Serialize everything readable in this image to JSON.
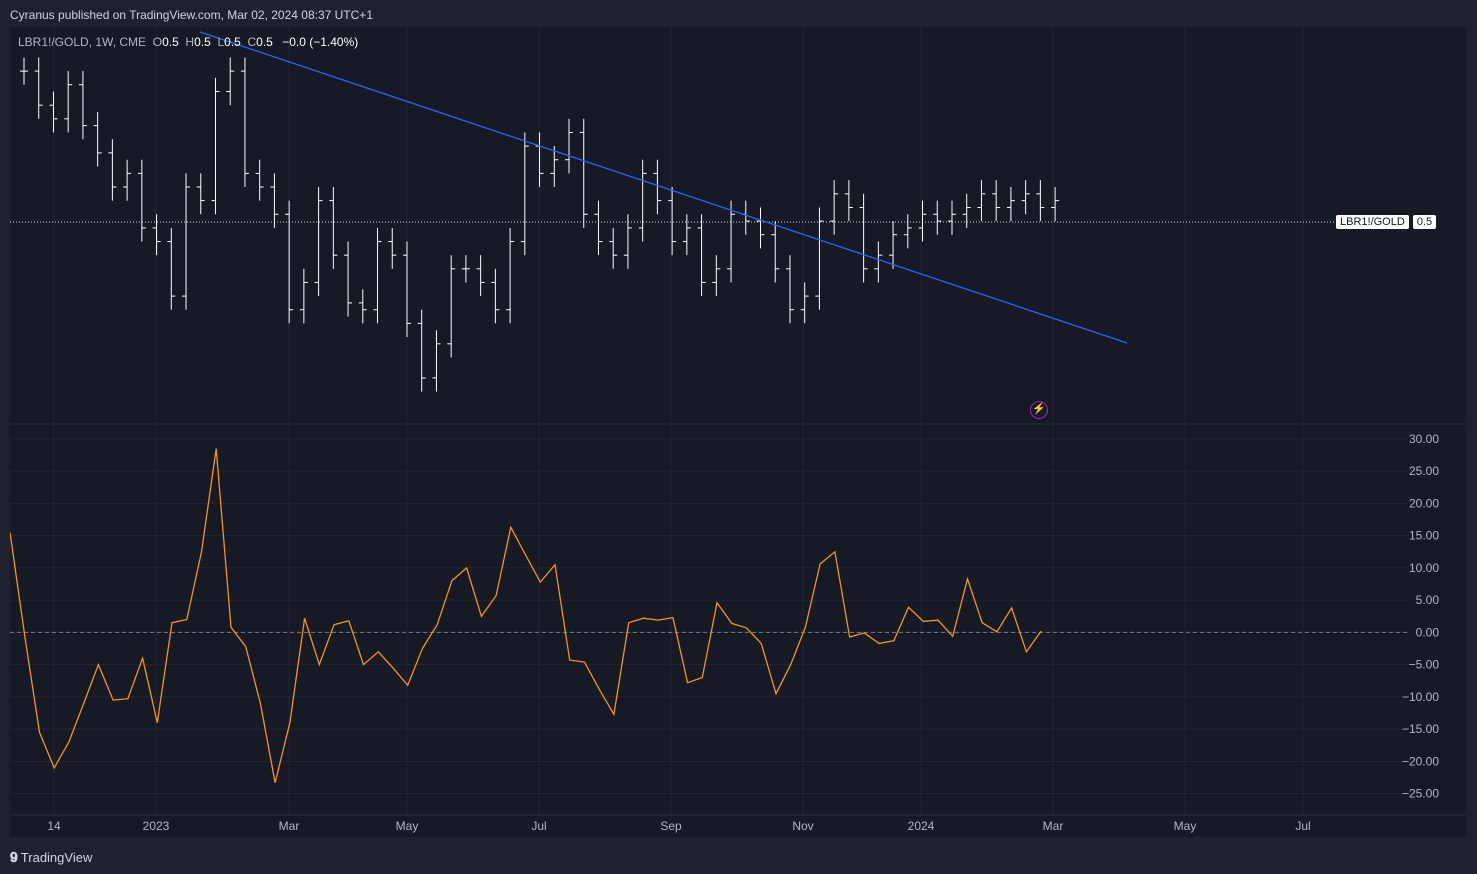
{
  "header": {
    "published": "Cyranus published on TradingView.com, Mar 02, 2024 08:37 UTC+1"
  },
  "legend": {
    "symbol": "LBR1!/GOLD, 1W, CME",
    "o_label": "O",
    "o": "0.5",
    "h_label": "H",
    "h": "0.5",
    "l_label": "L",
    "l": "0.5",
    "c_label": "C",
    "c": "0.5",
    "change": "−0.0 (−1.40%)"
  },
  "price_tag": {
    "symbol": "LBR1!/GOLD",
    "value": "0.5"
  },
  "footer": {
    "brand": "TradingView",
    "logo": "tradingview-logo"
  },
  "colors": {
    "background": "#161a25",
    "bars": "#ffffff",
    "trendline": "#2962ff",
    "oscillator": "#f7931a",
    "zero_line": "#787b86"
  },
  "chart_data": [
    {
      "type": "ohlc",
      "symbol": "LBR1!/GOLD",
      "timeframe": "1W",
      "current_value": 0.5,
      "x_ticks": [
        "14",
        "2023",
        "Mar",
        "May",
        "Jul",
        "Sep",
        "Nov",
        "2024",
        "Mar",
        "May",
        "Jul"
      ],
      "trendline": "descending",
      "grid": true
    },
    {
      "type": "line",
      "y_ticks": [
        "30.00",
        "25.00",
        "20.00",
        "15.00",
        "10.00",
        "5.00",
        "0.00",
        "−5.00",
        "−10.00",
        "−15.00",
        "−20.00",
        "−25.00"
      ],
      "ylim": [
        -28,
        32
      ],
      "zero_line": true,
      "values": [
        15.5,
        -0.5,
        -15.5,
        -21,
        -17,
        -11,
        -5,
        -10.5,
        -10.3,
        -4,
        -14,
        1.5,
        2,
        12.5,
        28.5,
        0.8,
        -2.2,
        -11,
        -23.3,
        -14,
        2.2,
        -5,
        1.2,
        1.8,
        -5,
        -3,
        -5.5,
        -8.2,
        -2.5,
        1.2,
        8,
        10,
        2.5,
        5.7,
        16.3,
        12,
        7.8,
        10.5,
        -4.3,
        -4.6,
        -8.8,
        -12.7,
        1.5,
        2.2,
        1.9,
        2.3,
        -7.8,
        -7,
        4.6,
        1.4,
        0.7,
        -1.7,
        -9.5,
        -5,
        0.8,
        10.6,
        12.5,
        -0.7,
        -0.1,
        -1.7,
        -1.3,
        3.9,
        1.7,
        1.9,
        -0.6,
        8.3,
        1.5,
        0.1,
        3.8,
        -3,
        0.2
      ]
    }
  ]
}
